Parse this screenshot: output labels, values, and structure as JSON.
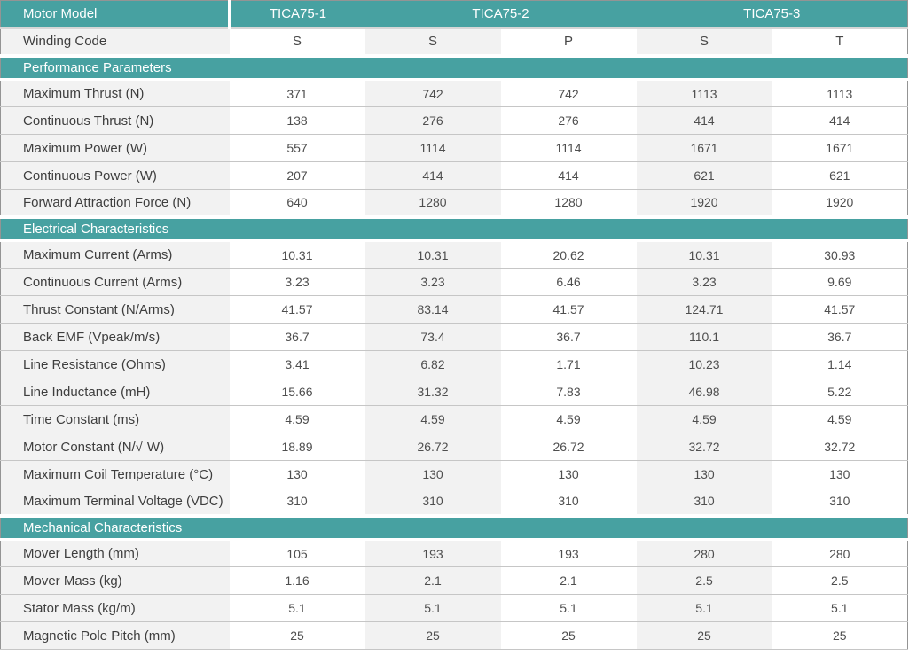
{
  "table": {
    "header": {
      "label": "Motor Model",
      "models": [
        {
          "name": "TICA75-1",
          "span": 1
        },
        {
          "name": "TICA75-2",
          "span": 2
        },
        {
          "name": "TICA75-3",
          "span": 2
        }
      ]
    },
    "winding": {
      "label": "Winding Code",
      "values": [
        "S",
        "S",
        "P",
        "S",
        "T"
      ]
    },
    "sections": [
      {
        "title": "Performance Parameters",
        "rows": [
          {
            "label": "Maximum Thrust (N)",
            "values": [
              "371",
              "742",
              "742",
              "1113",
              "1113"
            ]
          },
          {
            "label": "Continuous Thrust (N)",
            "values": [
              "138",
              "276",
              "276",
              "414",
              "414"
            ]
          },
          {
            "label": "Maximum Power (W)",
            "values": [
              "557",
              "1114",
              "1114",
              "1671",
              "1671"
            ]
          },
          {
            "label": "Continuous Power (W)",
            "values": [
              "207",
              "414",
              "414",
              "621",
              "621"
            ]
          },
          {
            "label": "Forward Attraction Force (N)",
            "values": [
              "640",
              "1280",
              "1280",
              "1920",
              "1920"
            ]
          }
        ]
      },
      {
        "title": "Electrical Characteristics",
        "rows": [
          {
            "label": "Maximum Current (Arms)",
            "values": [
              "10.31",
              "10.31",
              "20.62",
              "10.31",
              "30.93"
            ]
          },
          {
            "label": "Continuous Current (Arms)",
            "values": [
              "3.23",
              "3.23",
              "6.46",
              "3.23",
              "9.69"
            ]
          },
          {
            "label": "Thrust Constant (N/Arms)",
            "values": [
              "41.57",
              "83.14",
              "41.57",
              "124.71",
              "41.57"
            ]
          },
          {
            "label": "Back EMF (Vpeak/m/s)",
            "values": [
              "36.7",
              "73.4",
              "36.7",
              "110.1",
              "36.7"
            ]
          },
          {
            "label": "Line Resistance (Ohms)",
            "values": [
              "3.41",
              "6.82",
              "1.71",
              "10.23",
              "1.14"
            ]
          },
          {
            "label": "Line Inductance (mH)",
            "values": [
              "15.66",
              "31.32",
              "7.83",
              "46.98",
              "5.22"
            ]
          },
          {
            "label": "Time Constant (ms)",
            "values": [
              "4.59",
              "4.59",
              "4.59",
              "4.59",
              "4.59"
            ]
          },
          {
            "label": "Motor Constant (N/√‾W)",
            "values": [
              "18.89",
              "26.72",
              "26.72",
              "32.72",
              "32.72"
            ]
          },
          {
            "label": "Maximum Coil Temperature (°C)",
            "values": [
              "130",
              "130",
              "130",
              "130",
              "130"
            ]
          },
          {
            "label": "Maximum Terminal Voltage (VDC)",
            "values": [
              "310",
              "310",
              "310",
              "310",
              "310"
            ]
          }
        ]
      },
      {
        "title": "Mechanical Characteristics",
        "rows": [
          {
            "label": "Mover Length (mm)",
            "values": [
              "105",
              "193",
              "193",
              "280",
              "280"
            ]
          },
          {
            "label": "Mover Mass (kg)",
            "values": [
              "1.16",
              "2.1",
              "2.1",
              "2.5",
              "2.5"
            ]
          },
          {
            "label": "Stator Mass (kg/m)",
            "values": [
              "5.1",
              "5.1",
              "5.1",
              "5.1",
              "5.1"
            ]
          },
          {
            "label": "Magnetic Pole Pitch (mm)",
            "values": [
              "25",
              "25",
              "25",
              "25",
              "25"
            ]
          }
        ]
      }
    ]
  },
  "colors": {
    "accent_teal": "#47a1a1",
    "stripe_gray": "#f2f2f2",
    "row_separator": "#c6c6c6",
    "outer_border": "#949494",
    "header_text": "#ffffff",
    "label_text": "#3e3e3e",
    "value_text": "#4e4e4e"
  }
}
